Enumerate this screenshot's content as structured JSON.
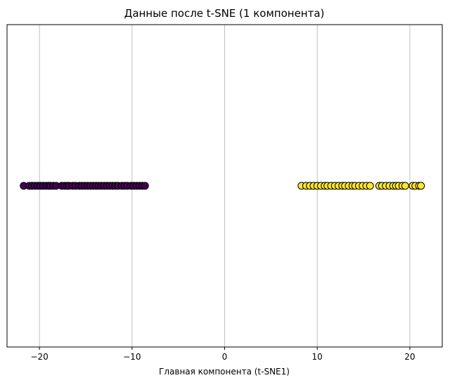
{
  "chart_data": {
    "type": "scatter",
    "title": "Данные после t-SNE (1 компонента)",
    "xlabel": "Главная компонента (t-SNE1)",
    "ylabel": "",
    "xlim": [
      -23.5,
      23.5
    ],
    "ylim": [
      -1,
      1
    ],
    "xticks": [
      -20,
      -10,
      0,
      10,
      20
    ],
    "xtick_labels": [
      "−20",
      "−10",
      "0",
      "10",
      "20"
    ],
    "grid": "vertical",
    "series": [
      {
        "color": "#440154",
        "values": [
          -21.7,
          -21.1,
          -20.8,
          -20.5,
          -20.2,
          -19.9,
          -19.6,
          -19.3,
          -19.0,
          -18.8,
          -18.5,
          -18.2,
          -17.6,
          -17.3,
          -17.0,
          -16.8,
          -16.4,
          -16.1,
          -15.7,
          -15.4,
          -15.1,
          -14.8,
          -14.5,
          -14.2,
          -13.9,
          -13.6,
          -13.3,
          -13.0,
          -12.7,
          -12.4,
          -12.1,
          -11.8,
          -11.5,
          -11.1,
          -10.8,
          -10.5,
          -10.1,
          -9.8,
          -9.5,
          -9.2,
          -8.9,
          -8.6
        ],
        "y": 0
      },
      {
        "color": "#fde725",
        "values": [
          8.3,
          8.8,
          9.2,
          9.6,
          10.0,
          10.4,
          10.8,
          11.1,
          11.5,
          11.9,
          12.3,
          12.7,
          13.0,
          13.4,
          13.8,
          14.1,
          14.5,
          14.9,
          15.3,
          15.7,
          16.7,
          17.0,
          17.4,
          17.8,
          18.2,
          18.5,
          18.8,
          19.2,
          19.5,
          20.3,
          20.6,
          21.0,
          21.2
        ],
        "y": 0
      }
    ]
  }
}
